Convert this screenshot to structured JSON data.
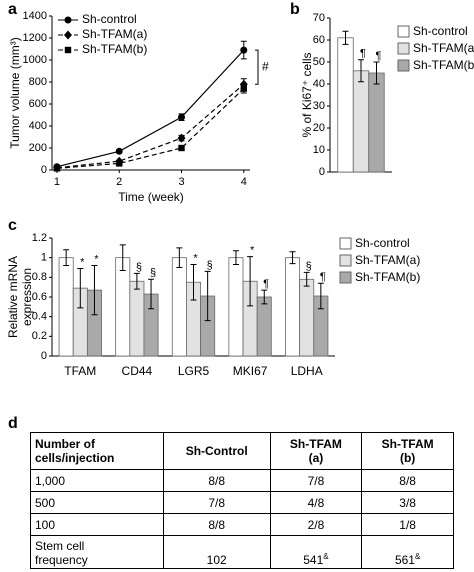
{
  "chart_data": [
    {
      "type": "line",
      "label": "a",
      "ylabel": "Tumor volume (mm³)",
      "xlabel": "Time (week)",
      "x": [
        1,
        2,
        3,
        4
      ],
      "xlim": [
        0.92,
        4.1
      ],
      "xticks": [
        1,
        2,
        3,
        4
      ],
      "ylim": [
        0,
        1400
      ],
      "yticks": [
        0,
        200,
        400,
        600,
        800,
        1000,
        1200,
        1400
      ],
      "legend": "upper left",
      "annotation": "#",
      "series": [
        {
          "name": "Sh-control",
          "color": "#000000",
          "marker": "circle",
          "dash": "none",
          "values": [
            30,
            170,
            480,
            1090
          ],
          "errors": [
            8,
            15,
            30,
            80
          ]
        },
        {
          "name": "Sh-TFAM(a)",
          "color": "#000000",
          "marker": "diamond",
          "dash": "5,3",
          "values": [
            20,
            80,
            290,
            780
          ],
          "errors": [
            5,
            10,
            25,
            50
          ]
        },
        {
          "name": "Sh-TFAM(b)",
          "color": "#000000",
          "marker": "square",
          "dash": "5,3",
          "values": [
            15,
            60,
            200,
            740
          ],
          "errors": [
            5,
            10,
            20,
            40
          ]
        }
      ]
    },
    {
      "type": "bar",
      "label": "b",
      "ylabel": "% of Ki67⁺ cells",
      "ylim": [
        0,
        70
      ],
      "yticks": [
        0,
        10,
        20,
        30,
        40,
        50,
        60,
        70
      ],
      "legend": "right",
      "series": [
        {
          "name": "Sh-control",
          "color": "#ffffff",
          "values": [
            61
          ],
          "errors": [
            3
          ]
        },
        {
          "name": "Sh-TFAM(a)",
          "color": "#e2e2e2",
          "values": [
            46
          ],
          "errors": [
            5
          ],
          "symbols": [
            "¶"
          ]
        },
        {
          "name": "Sh-TFAM(b)",
          "color": "#a9a9a9",
          "values": [
            45
          ],
          "errors": [
            5
          ],
          "symbols": [
            "¶"
          ]
        }
      ]
    },
    {
      "type": "bar",
      "label": "c",
      "ylabel": [
        "Relative mRNA",
        "expression"
      ],
      "categories": [
        "TFAM",
        "CD44",
        "LGR5",
        "MKI67",
        "LDHA"
      ],
      "ylim": [
        0,
        1.2
      ],
      "yticks": [
        0,
        0.2,
        0.4,
        0.6,
        0.8,
        1,
        1.2
      ],
      "legend": "right",
      "series": [
        {
          "name": "Sh-control",
          "color": "#ffffff",
          "values": [
            1,
            1,
            1,
            1,
            1
          ],
          "errors": [
            0.08,
            0.13,
            0.1,
            0.07,
            0.06
          ]
        },
        {
          "name": "Sh-TFAM(a)",
          "color": "#e2e2e2",
          "values": [
            0.69,
            0.76,
            0.75,
            0.76,
            0.78
          ],
          "errors": [
            0.2,
            0.08,
            0.18,
            0.25,
            0.07
          ],
          "symbols": [
            "*",
            "§",
            "*",
            "*",
            "§"
          ]
        },
        {
          "name": "Sh-TFAM(b)",
          "color": "#a9a9a9",
          "values": [
            0.67,
            0.63,
            0.61,
            0.6,
            0.61
          ],
          "errors": [
            0.25,
            0.15,
            0.25,
            0.07,
            0.13
          ],
          "symbols": [
            "*",
            "§",
            "§",
            "¶",
            "¶"
          ]
        }
      ]
    }
  ],
  "table": {
    "label": "d",
    "header": [
      [
        "Number of",
        "cells/injection"
      ],
      [
        "Sh-Control"
      ],
      [
        "Sh-TFAM",
        "(a)"
      ],
      [
        "Sh-TFAM",
        "(b)"
      ]
    ],
    "rows": [
      [
        [
          "1,000"
        ],
        [
          "8/8"
        ],
        [
          "7/8"
        ],
        [
          "8/8"
        ]
      ],
      [
        [
          "500"
        ],
        [
          "7/8"
        ],
        [
          "4/8"
        ],
        [
          "3/8"
        ]
      ],
      [
        [
          "100"
        ],
        [
          "8/8"
        ],
        [
          "2/8"
        ],
        [
          "1/8"
        ]
      ],
      [
        [
          "Stem cell",
          "frequency"
        ],
        [
          "102"
        ],
        [
          "541",
          "&"
        ],
        [
          "561",
          "&"
        ]
      ]
    ]
  }
}
